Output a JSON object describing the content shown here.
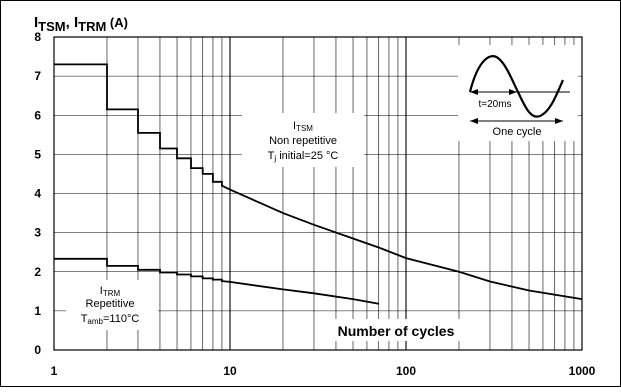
{
  "chart_data": {
    "type": "line",
    "title": {
      "main1": "I",
      "sub1": "TSM",
      "sep": ", I",
      "sub2": "TRM",
      "unit": " (A)"
    },
    "xlabel": "Number of cycles",
    "ylabel": "",
    "x_scale": "log",
    "xlim": [
      1,
      1000
    ],
    "ylim": [
      0,
      8
    ],
    "x_ticks": [
      "1",
      "10",
      "100",
      "1000"
    ],
    "y_ticks": [
      "0",
      "1",
      "2",
      "3",
      "4",
      "5",
      "6",
      "7",
      "8"
    ],
    "grid": true,
    "series": [
      {
        "name": "ITSM",
        "points": [
          [
            1,
            7.3
          ],
          [
            2,
            7.3
          ],
          [
            2,
            6.15
          ],
          [
            3,
            6.15
          ],
          [
            3,
            5.55
          ],
          [
            4,
            5.55
          ],
          [
            4,
            5.15
          ],
          [
            5,
            5.15
          ],
          [
            5,
            4.9
          ],
          [
            6,
            4.9
          ],
          [
            6,
            4.65
          ],
          [
            7,
            4.65
          ],
          [
            7,
            4.5
          ],
          [
            8,
            4.5
          ],
          [
            8,
            4.3
          ],
          [
            9,
            4.3
          ],
          [
            9,
            4.2
          ],
          [
            10,
            4.1
          ],
          [
            15,
            3.75
          ],
          [
            20,
            3.5
          ],
          [
            30,
            3.2
          ],
          [
            50,
            2.85
          ],
          [
            70,
            2.62
          ],
          [
            100,
            2.35
          ],
          [
            200,
            2.0
          ],
          [
            300,
            1.75
          ],
          [
            500,
            1.52
          ],
          [
            1000,
            1.3
          ]
        ]
      },
      {
        "name": "ITRM",
        "points": [
          [
            1,
            2.33
          ],
          [
            2,
            2.33
          ],
          [
            2,
            2.15
          ],
          [
            3,
            2.15
          ],
          [
            3,
            2.05
          ],
          [
            4,
            2.05
          ],
          [
            4,
            1.98
          ],
          [
            5,
            1.98
          ],
          [
            5,
            1.93
          ],
          [
            6,
            1.93
          ],
          [
            6,
            1.88
          ],
          [
            7,
            1.88
          ],
          [
            7,
            1.83
          ],
          [
            8,
            1.83
          ],
          [
            8,
            1.8
          ],
          [
            9,
            1.8
          ],
          [
            9,
            1.76
          ],
          [
            10,
            1.74
          ],
          [
            20,
            1.55
          ],
          [
            30,
            1.45
          ],
          [
            50,
            1.3
          ],
          [
            70,
            1.18
          ]
        ]
      }
    ],
    "annotations": {
      "itsm": {
        "label_main": "I",
        "label_sub": "TSM",
        "line2": "Non repetitive",
        "line3_main": "T",
        "line3_sub": "j",
        "line3_rest": " initial=25 °C"
      },
      "itrm": {
        "label_main": "I",
        "label_sub": "TRM",
        "line2": "Repetitive",
        "line3_main": "T",
        "line3_sub": "amb",
        "line3_rest": "=110°C"
      },
      "inset": {
        "period": "t=20ms",
        "caption": "One cycle"
      }
    }
  }
}
